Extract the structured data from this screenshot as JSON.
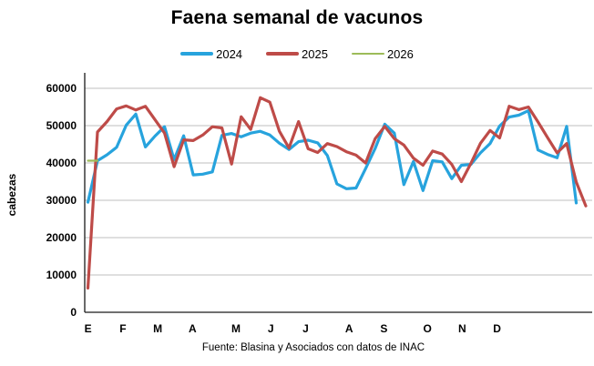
{
  "title": "Faena semanal de vacunos",
  "footer": "Fuente: Blasina y Asociados con datos de INAC",
  "y_axis": {
    "title": "cabezas",
    "ticks": [
      0,
      10000,
      20000,
      30000,
      40000,
      50000,
      60000
    ]
  },
  "x_axis": {
    "labels": [
      "E",
      "F",
      "M",
      "A",
      "M",
      "J",
      "J",
      "A",
      "S",
      "O",
      "N",
      "D"
    ],
    "label_weeks": [
      1,
      5,
      9,
      13,
      18,
      22,
      26,
      31,
      35,
      40,
      44,
      48
    ]
  },
  "colors": {
    "s2024": "#27A3DD",
    "s2025": "#BE4B48",
    "s2026": "#9CBB59",
    "grid": "#BFBFBF",
    "axis": "#1a1a1a"
  },
  "legend": [
    {
      "label": "2024",
      "color": "#27A3DD",
      "thickness": 4
    },
    {
      "label": "2025",
      "color": "#BE4B48",
      "thickness": 4
    },
    {
      "label": "2026",
      "color": "#9CBB59",
      "thickness": 2
    }
  ],
  "chart_data": {
    "type": "line",
    "x_unit": "week",
    "title": "Faena semanal de vacunos",
    "ylabel": "cabezas",
    "ylim": [
      0,
      60000
    ],
    "grid": "horizontal",
    "legend_position": "top",
    "series": [
      {
        "name": "2024",
        "color": "#27A3DD",
        "width": 3.2,
        "start_week": 1,
        "values": [
          29500,
          40600,
          42200,
          44200,
          50100,
          53100,
          44300,
          47200,
          49700,
          40900,
          47300,
          36800,
          37000,
          37600,
          47400,
          47900,
          47000,
          48000,
          48500,
          47500,
          45300,
          43600,
          45700,
          46100,
          45400,
          42000,
          34400,
          33100,
          33300,
          38500,
          43900,
          50400,
          48000,
          34200,
          40400,
          32600,
          40600,
          40300,
          35800,
          39400,
          39600,
          42700,
          45200,
          49900,
          52300,
          52800,
          54000,
          43500,
          42300,
          41400,
          49800,
          29300
        ]
      },
      {
        "name": "2025",
        "color": "#BE4B48",
        "width": 3.2,
        "start_week": 1,
        "values": [
          6500,
          48300,
          51100,
          54500,
          55300,
          54200,
          55200,
          51600,
          48000,
          39000,
          46200,
          46000,
          47500,
          49700,
          49400,
          39700,
          52400,
          49000,
          57500,
          56300,
          48500,
          44000,
          51100,
          43800,
          42800,
          45200,
          44400,
          43000,
          42100,
          40000,
          46500,
          49800,
          46500,
          44800,
          41300,
          39400,
          43200,
          42400,
          39600,
          35000,
          39900,
          45300,
          48700,
          46700,
          55200,
          54300,
          55000,
          51000,
          46800,
          42700,
          45200,
          34900,
          28500
        ]
      },
      {
        "name": "2026",
        "color": "#9CBB59",
        "width": 2.2,
        "start_week": 1,
        "values": [
          40600,
          40600
        ]
      }
    ]
  }
}
